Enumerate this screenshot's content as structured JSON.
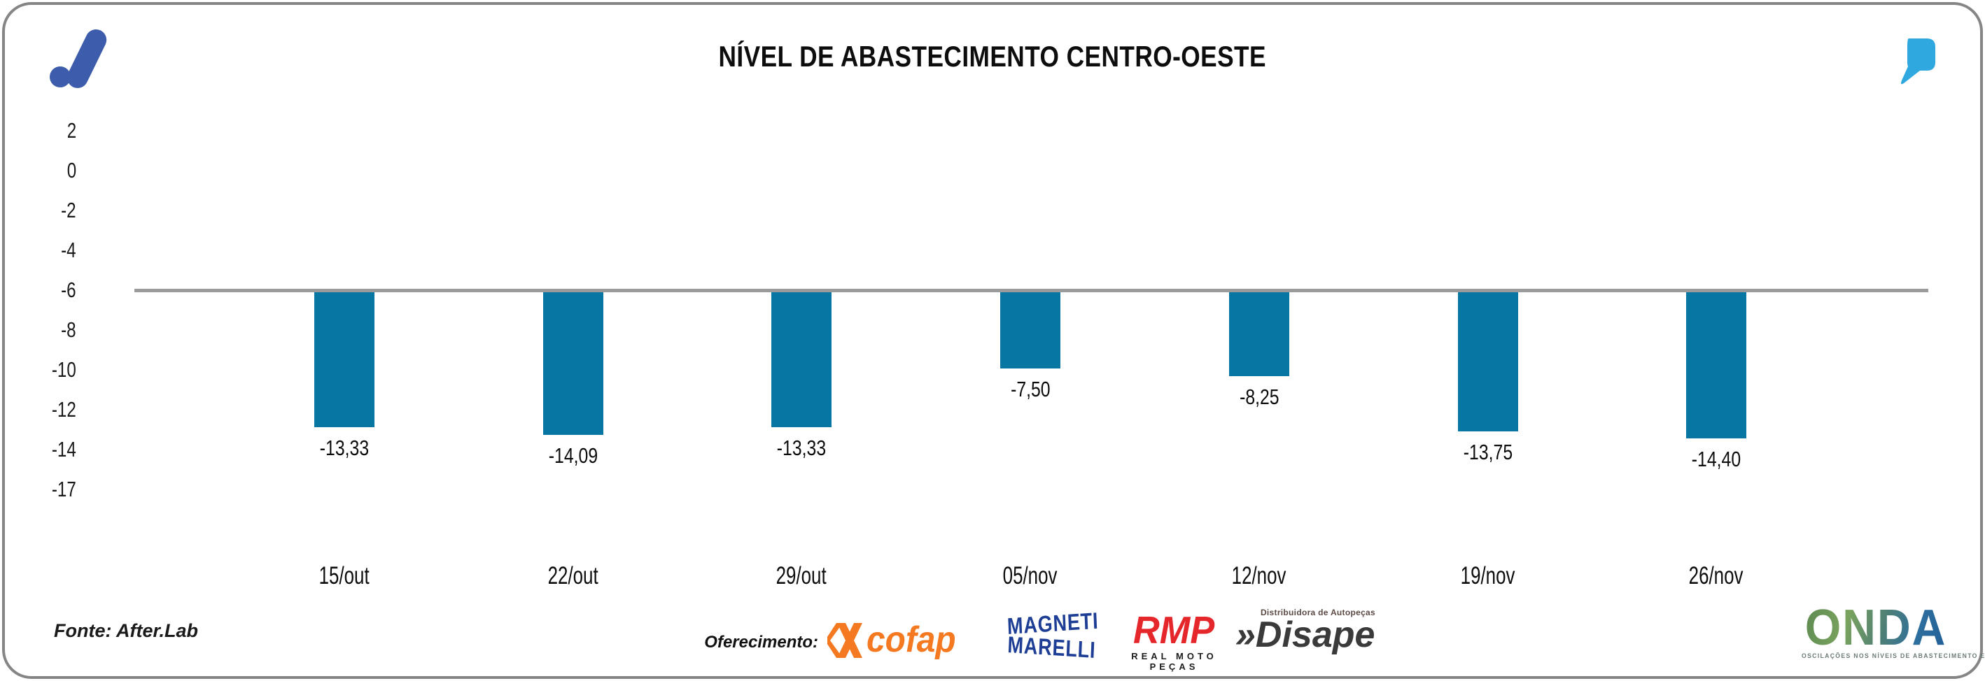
{
  "header": {
    "title": "NÍVEL DE ABASTECIMENTO CENTRO-OESTE",
    "brand_color": "#3D5CAC",
    "quote_color": "#2FA7DF"
  },
  "chart_data": {
    "type": "bar",
    "title": "NÍVEL DE ABASTECIMENTO CENTRO-OESTE",
    "categories": [
      "15/out",
      "22/out",
      "29/out",
      "05/nov",
      "12/nov",
      "19/nov",
      "26/nov"
    ],
    "values": [
      -13.33,
      -14.09,
      -13.33,
      -7.5,
      -8.25,
      -13.75,
      -14.4
    ],
    "value_labels": [
      "-13,33",
      "-14,09",
      "-13,33",
      "-7,50",
      "-8,25",
      "-13,75",
      "-14,40"
    ],
    "y_ticks": [
      "2",
      "0",
      "-2",
      "-4",
      "-6",
      "-8",
      "-10",
      "-12",
      "-14",
      "-17"
    ],
    "ylim": [
      -17,
      2
    ],
    "baseline_value": -6,
    "xlabel": "",
    "ylabel": "",
    "grid": false,
    "legend": false,
    "bar_color": "#0776A3",
    "baseline_color": "#9B9B9B"
  },
  "footer": {
    "source": "Fonte: After.Lab",
    "sponsor_label": "Oferecimento:",
    "sponsors": [
      {
        "name": "Cofap",
        "text": "cofap",
        "color": "#F47920"
      },
      {
        "name": "Magneti Marelli",
        "line1": "MAGNETI",
        "line2": "MARELLI",
        "color": "#1D3E94"
      },
      {
        "name": "RMP",
        "text": "RMP",
        "subtext": "REAL MOTO PEÇAS",
        "color": "#E5262B"
      },
      {
        "name": "Disape",
        "prefix": "»",
        "text": "Disape",
        "subtext": "Distribuidora de Autopeças",
        "color": "#3A3A3A"
      }
    ],
    "onda": {
      "text": "ONDA",
      "tagline": "OSCILAÇÕES NOS NÍVEIS DE ABASTECIMENTO E PREÇOS"
    }
  }
}
